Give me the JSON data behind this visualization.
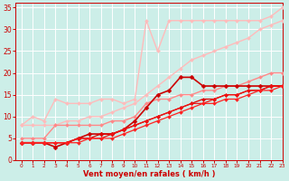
{
  "background_color": "#cceee8",
  "grid_color": "#ffffff",
  "xlabel": "Vent moyen/en rafales ( km/h )",
  "xlabel_color": "#cc0000",
  "tick_color": "#cc0000",
  "xlim": [
    -0.5,
    23
  ],
  "ylim": [
    0,
    36
  ],
  "xticks": [
    0,
    1,
    2,
    3,
    4,
    5,
    6,
    7,
    8,
    9,
    10,
    11,
    12,
    13,
    14,
    15,
    16,
    17,
    18,
    19,
    20,
    21,
    22,
    23
  ],
  "yticks": [
    0,
    5,
    10,
    15,
    20,
    25,
    30,
    35
  ],
  "lines": [
    {
      "x": [
        0,
        1,
        2,
        3,
        4,
        5,
        6,
        7,
        8,
        9,
        10,
        11,
        12,
        13,
        14,
        15,
        16,
        17,
        18,
        19,
        20,
        21,
        22,
        23
      ],
      "y": [
        8,
        8,
        8,
        8,
        9,
        9,
        10,
        10,
        11,
        12,
        13,
        15,
        17,
        19,
        21,
        23,
        24,
        25,
        26,
        27,
        28,
        30,
        31,
        32
      ],
      "color": "#ffbbbb",
      "lw": 1.0,
      "marker": "D",
      "ms": 2.0
    },
    {
      "x": [
        0,
        1,
        2,
        3,
        4,
        5,
        6,
        7,
        8,
        9,
        10,
        11,
        12,
        13,
        14,
        15,
        16,
        17,
        18,
        19,
        20,
        21,
        22,
        23
      ],
      "y": [
        8,
        10,
        9,
        14,
        13,
        13,
        13,
        14,
        14,
        13,
        14,
        32,
        25,
        32,
        32,
        32,
        32,
        32,
        32,
        32,
        32,
        32,
        33,
        35
      ],
      "color": "#ffbbbb",
      "lw": 1.0,
      "marker": "D",
      "ms": 2.0
    },
    {
      "x": [
        0,
        1,
        2,
        3,
        4,
        5,
        6,
        7,
        8,
        9,
        10,
        11,
        12,
        13,
        14,
        15,
        16,
        17,
        18,
        19,
        20,
        21,
        22,
        23
      ],
      "y": [
        5,
        5,
        5,
        8,
        8,
        8,
        8,
        8,
        9,
        9,
        10,
        13,
        14,
        14,
        15,
        15,
        16,
        16,
        17,
        17,
        18,
        19,
        20,
        20
      ],
      "color": "#ff8888",
      "lw": 1.0,
      "marker": "D",
      "ms": 2.0
    },
    {
      "x": [
        0,
        1,
        2,
        3,
        4,
        5,
        6,
        7,
        8,
        9,
        10,
        11,
        12,
        13,
        14,
        15,
        16,
        17,
        18,
        19,
        20,
        21,
        22,
        23
      ],
      "y": [
        4,
        4,
        4,
        3,
        4,
        5,
        6,
        6,
        6,
        7,
        9,
        12,
        15,
        16,
        19,
        19,
        17,
        17,
        17,
        17,
        17,
        17,
        17,
        17
      ],
      "color": "#cc0000",
      "lw": 1.2,
      "marker": "D",
      "ms": 2.5
    },
    {
      "x": [
        0,
        1,
        2,
        3,
        4,
        5,
        6,
        7,
        8,
        9,
        10,
        11,
        12,
        13,
        14,
        15,
        16,
        17,
        18,
        19,
        20,
        21,
        22,
        23
      ],
      "y": [
        4,
        4,
        4,
        4,
        4,
        5,
        5,
        6,
        6,
        7,
        8,
        9,
        10,
        11,
        12,
        13,
        14,
        14,
        15,
        15,
        16,
        16,
        17,
        17
      ],
      "color": "#dd0000",
      "lw": 0.9,
      "marker": "D",
      "ms": 2.0
    },
    {
      "x": [
        0,
        1,
        2,
        3,
        4,
        5,
        6,
        7,
        8,
        9,
        10,
        11,
        12,
        13,
        14,
        15,
        16,
        17,
        18,
        19,
        20,
        21,
        22,
        23
      ],
      "y": [
        4,
        4,
        4,
        4,
        4,
        5,
        5,
        5,
        6,
        7,
        8,
        9,
        10,
        11,
        12,
        13,
        13,
        14,
        15,
        15,
        16,
        16,
        17,
        17
      ],
      "color": "#ee1111",
      "lw": 0.9,
      "marker": "D",
      "ms": 2.0
    },
    {
      "x": [
        0,
        1,
        2,
        3,
        4,
        5,
        6,
        7,
        8,
        9,
        10,
        11,
        12,
        13,
        14,
        15,
        16,
        17,
        18,
        19,
        20,
        21,
        22,
        23
      ],
      "y": [
        4,
        4,
        4,
        4,
        4,
        4,
        5,
        5,
        5,
        6,
        7,
        8,
        9,
        10,
        11,
        12,
        13,
        13,
        14,
        14,
        15,
        16,
        16,
        17
      ],
      "color": "#ff2222",
      "lw": 0.9,
      "marker": "D",
      "ms": 2.0
    }
  ]
}
